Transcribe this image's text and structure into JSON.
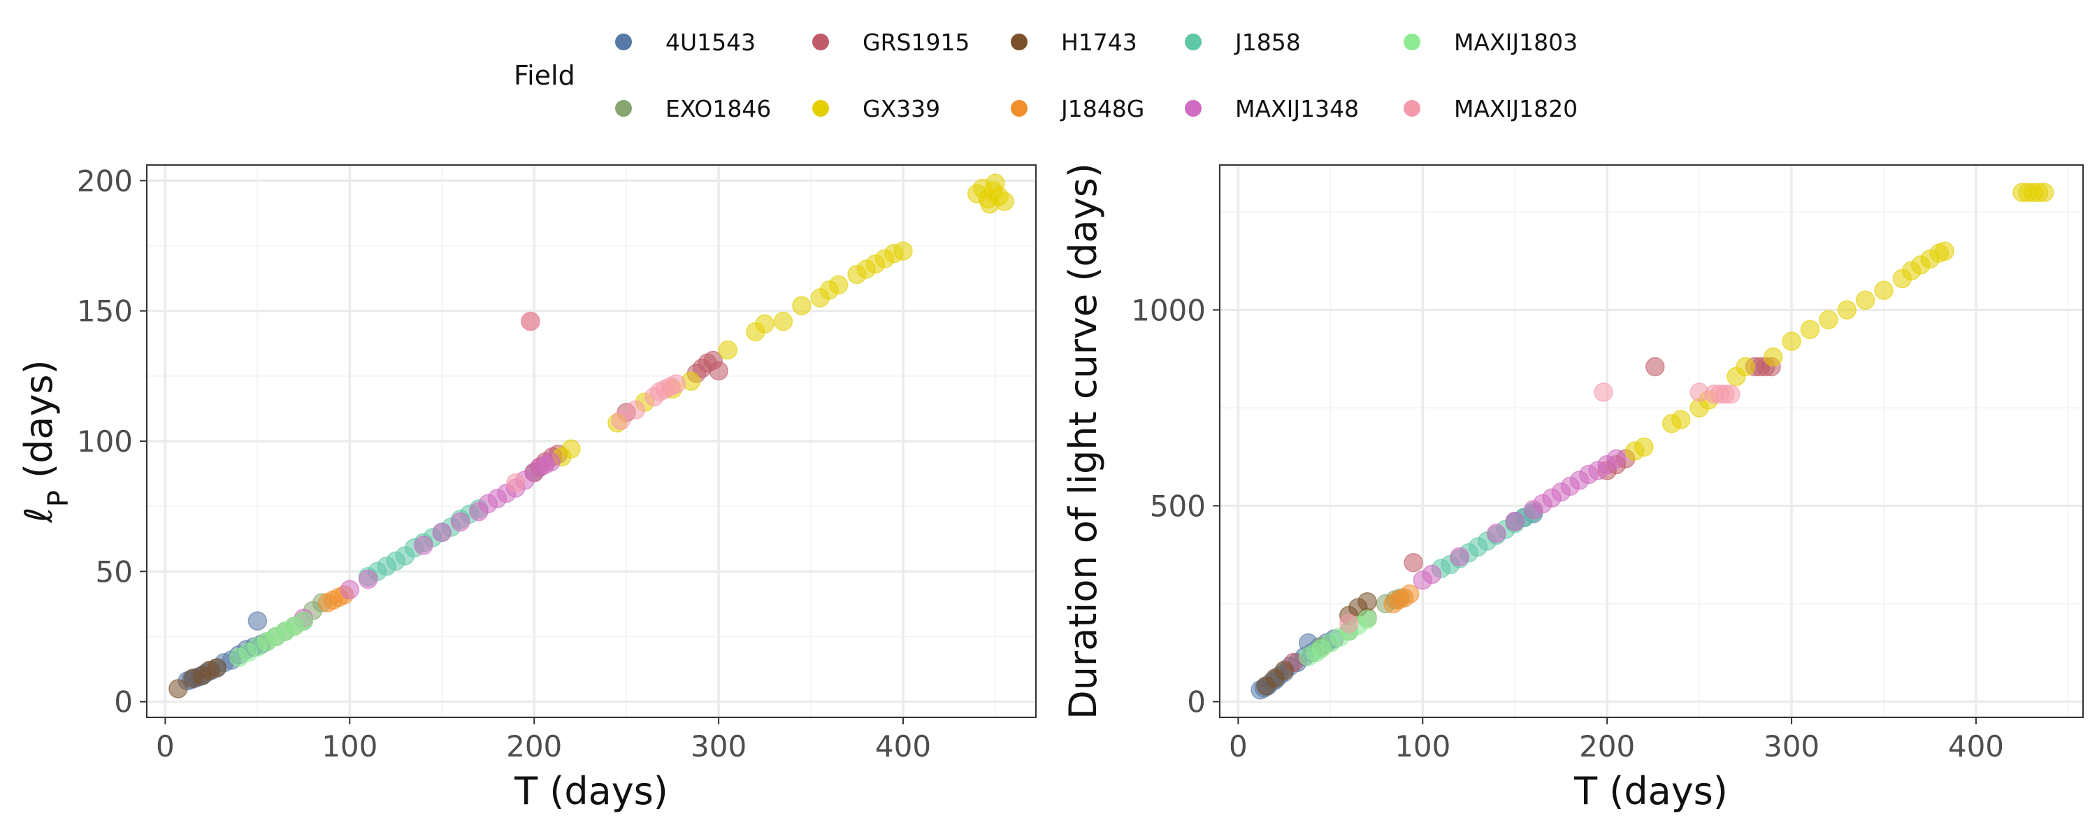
{
  "legend": {
    "title": "Field",
    "entries": [
      {
        "name": "4U1543",
        "color": "#5779A7"
      },
      {
        "name": "EXO1846",
        "color": "#87A66F"
      },
      {
        "name": "GRS1915",
        "color": "#BF5B68"
      },
      {
        "name": "GX339",
        "color": "#E3CF00"
      },
      {
        "name": "H1743",
        "color": "#7A512A"
      },
      {
        "name": "J1848G",
        "color": "#F08F2C"
      },
      {
        "name": "J1858",
        "color": "#5DC7A6"
      },
      {
        "name": "MAXIJ1348",
        "color": "#CF6BC0"
      },
      {
        "name": "MAXIJ1803",
        "color": "#8EEB93"
      },
      {
        "name": "MAXIJ1820",
        "color": "#F59AAB"
      }
    ]
  },
  "chart_data": [
    {
      "type": "scatter",
      "xlabel": "T (days)",
      "ylabel": "ℓP (days)",
      "ylabel_main": "ℓ",
      "ylabel_sub": "P",
      "ylabel_rest": " (days)",
      "xlim": [
        -10,
        472
      ],
      "ylim": [
        -6,
        206
      ],
      "xticks": [
        0,
        100,
        200,
        300,
        400
      ],
      "yticks": [
        0,
        50,
        100,
        150,
        200
      ],
      "series": [
        {
          "name": "4U1543",
          "points": [
            [
              12,
              8
            ],
            [
              14,
              8.5
            ],
            [
              16,
              9
            ],
            [
              18,
              9.5
            ],
            [
              20,
              10
            ],
            [
              22,
              11
            ],
            [
              25,
              12
            ],
            [
              28,
              13
            ],
            [
              32,
              15
            ],
            [
              36,
              16
            ],
            [
              40,
              18
            ],
            [
              44,
              20
            ],
            [
              48,
              21
            ],
            [
              50,
              31
            ],
            [
              52,
              22
            ]
          ]
        },
        {
          "name": "EXO1846",
          "points": [
            [
              55,
              23
            ],
            [
              60,
              25
            ],
            [
              65,
              27
            ],
            [
              70,
              29
            ],
            [
              75,
              31
            ],
            [
              80,
              35
            ],
            [
              85,
              38
            ]
          ]
        },
        {
          "name": "GRS1915",
          "points": [
            [
              203,
              90
            ],
            [
              206,
              92
            ],
            [
              210,
              94
            ],
            [
              213,
              95
            ],
            [
              288,
              126
            ],
            [
              291,
              128
            ],
            [
              294,
              130
            ],
            [
              297,
              131
            ],
            [
              300,
              127
            ],
            [
              250,
              111
            ],
            [
              198,
              146
            ]
          ]
        },
        {
          "name": "GX339",
          "points": [
            [
              215,
              94
            ],
            [
              220,
              97
            ],
            [
              245,
              107
            ],
            [
              260,
              115
            ],
            [
              275,
              120
            ],
            [
              285,
              123
            ],
            [
              305,
              135
            ],
            [
              320,
              142
            ],
            [
              325,
              145
            ],
            [
              335,
              146
            ],
            [
              345,
              152
            ],
            [
              355,
              155
            ],
            [
              360,
              158
            ],
            [
              365,
              160
            ],
            [
              375,
              164
            ],
            [
              380,
              166
            ],
            [
              385,
              168
            ],
            [
              390,
              170
            ],
            [
              395,
              172
            ],
            [
              400,
              173
            ],
            [
              440,
              195
            ],
            [
              443,
              197
            ],
            [
              446,
              193
            ],
            [
              449,
              196
            ],
            [
              452,
              194
            ],
            [
              455,
              192
            ],
            [
              447,
              191
            ],
            [
              450,
              199
            ]
          ]
        },
        {
          "name": "H1743",
          "points": [
            [
              7,
              5
            ],
            [
              15,
              9
            ],
            [
              20,
              10
            ],
            [
              24,
              12
            ],
            [
              28,
              13
            ],
            [
              200,
              88
            ]
          ]
        },
        {
          "name": "J1848G",
          "points": [
            [
              88,
              38
            ],
            [
              91,
              39
            ],
            [
              94,
              40
            ],
            [
              97,
              41
            ]
          ]
        },
        {
          "name": "J1858",
          "points": [
            [
              110,
              48
            ],
            [
              115,
              50
            ],
            [
              120,
              52
            ],
            [
              125,
              54
            ],
            [
              130,
              56
            ],
            [
              135,
              59
            ],
            [
              140,
              61
            ],
            [
              145,
              63
            ],
            [
              150,
              65
            ],
            [
              155,
              67
            ],
            [
              160,
              70
            ],
            [
              165,
              72
            ],
            [
              170,
              74
            ]
          ]
        },
        {
          "name": "MAXIJ1348",
          "points": [
            [
              75,
              32
            ],
            [
              100,
              43
            ],
            [
              110,
              47
            ],
            [
              140,
              60
            ],
            [
              150,
              65
            ],
            [
              160,
              69
            ],
            [
              170,
              73
            ],
            [
              175,
              76
            ],
            [
              180,
              78
            ],
            [
              185,
              80
            ],
            [
              190,
              82
            ],
            [
              195,
              85
            ],
            [
              200,
              88
            ],
            [
              203,
              90
            ],
            [
              206,
              91
            ],
            [
              209,
              92
            ]
          ]
        },
        {
          "name": "MAXIJ1803",
          "points": [
            [
              40,
              17
            ],
            [
              45,
              19
            ],
            [
              50,
              21
            ],
            [
              55,
              23
            ],
            [
              60,
              25
            ],
            [
              65,
              27
            ],
            [
              70,
              29
            ],
            [
              75,
              31
            ]
          ]
        },
        {
          "name": "MAXIJ1820",
          "points": [
            [
              190,
              84
            ],
            [
              198,
              146
            ],
            [
              255,
              112
            ],
            [
              265,
              117
            ],
            [
              268,
              119
            ],
            [
              271,
              120
            ],
            [
              274,
              121
            ],
            [
              277,
              122
            ],
            [
              247,
              108
            ]
          ]
        }
      ]
    },
    {
      "type": "scatter",
      "xlabel": "T (days)",
      "ylabel": "Duration of light curve (days)",
      "xlim": [
        -10,
        458
      ],
      "ylim": [
        -40,
        1370
      ],
      "xticks": [
        0,
        100,
        200,
        300,
        400
      ],
      "yticks": [
        0,
        500,
        1000
      ],
      "series": [
        {
          "name": "4U1543",
          "points": [
            [
              12,
              30
            ],
            [
              14,
              35
            ],
            [
              16,
              40
            ],
            [
              18,
              50
            ],
            [
              20,
              55
            ],
            [
              22,
              65
            ],
            [
              25,
              75
            ],
            [
              28,
              90
            ],
            [
              32,
              100
            ],
            [
              36,
              115
            ],
            [
              40,
              125
            ],
            [
              38,
              150
            ],
            [
              44,
              140
            ],
            [
              48,
              150
            ],
            [
              52,
              160
            ],
            [
              150,
              460
            ],
            [
              155,
              470
            ],
            [
              160,
              480
            ]
          ]
        },
        {
          "name": "EXO1846",
          "points": [
            [
              45,
              140
            ],
            [
              60,
              180
            ],
            [
              70,
              215
            ],
            [
              80,
              250
            ],
            [
              85,
              260
            ],
            [
              88,
              265
            ]
          ]
        },
        {
          "name": "GRS1915",
          "points": [
            [
              200,
              590
            ],
            [
              205,
              605
            ],
            [
              210,
              620
            ],
            [
              280,
              855
            ],
            [
              283,
              855
            ],
            [
              286,
              855
            ],
            [
              289,
              855
            ],
            [
              226,
              855
            ],
            [
              95,
              355
            ],
            [
              30,
              100
            ]
          ]
        },
        {
          "name": "GX339",
          "points": [
            [
              215,
              640
            ],
            [
              220,
              650
            ],
            [
              235,
              710
            ],
            [
              240,
              720
            ],
            [
              250,
              750
            ],
            [
              255,
              770
            ],
            [
              270,
              830
            ],
            [
              275,
              855
            ],
            [
              290,
              880
            ],
            [
              300,
              920
            ],
            [
              310,
              950
            ],
            [
              320,
              975
            ],
            [
              330,
              1000
            ],
            [
              340,
              1025
            ],
            [
              350,
              1050
            ],
            [
              360,
              1080
            ],
            [
              365,
              1100
            ],
            [
              370,
              1115
            ],
            [
              375,
              1130
            ],
            [
              380,
              1145
            ],
            [
              383,
              1150
            ],
            [
              425,
              1300
            ],
            [
              428,
              1300
            ],
            [
              431,
              1300
            ],
            [
              434,
              1300
            ],
            [
              437,
              1300
            ]
          ]
        },
        {
          "name": "H1743",
          "points": [
            [
              15,
              40
            ],
            [
              20,
              60
            ],
            [
              25,
              80
            ],
            [
              60,
              220
            ],
            [
              65,
              240
            ],
            [
              70,
              255
            ]
          ]
        },
        {
          "name": "J1848G",
          "points": [
            [
              84,
              250
            ],
            [
              87,
              260
            ],
            [
              90,
              265
            ],
            [
              93,
              275
            ]
          ]
        },
        {
          "name": "J1858",
          "points": [
            [
              110,
              340
            ],
            [
              115,
              350
            ],
            [
              120,
              365
            ],
            [
              125,
              380
            ],
            [
              130,
              395
            ],
            [
              135,
              410
            ],
            [
              140,
              425
            ],
            [
              145,
              440
            ],
            [
              150,
              455
            ],
            [
              155,
              470
            ],
            [
              160,
              485
            ]
          ]
        },
        {
          "name": "MAXIJ1348",
          "points": [
            [
              100,
              310
            ],
            [
              105,
              325
            ],
            [
              120,
              370
            ],
            [
              140,
              430
            ],
            [
              150,
              460
            ],
            [
              160,
              490
            ],
            [
              165,
              505
            ],
            [
              170,
              520
            ],
            [
              175,
              535
            ],
            [
              180,
              550
            ],
            [
              185,
              565
            ],
            [
              190,
              580
            ],
            [
              195,
              590
            ],
            [
              200,
              605
            ],
            [
              205,
              620
            ]
          ]
        },
        {
          "name": "MAXIJ1803",
          "points": [
            [
              38,
              115
            ],
            [
              42,
              125
            ],
            [
              45,
              135
            ],
            [
              50,
              150
            ],
            [
              55,
              165
            ],
            [
              60,
              180
            ],
            [
              65,
              195
            ],
            [
              70,
              210
            ]
          ]
        },
        {
          "name": "MAXIJ1820",
          "points": [
            [
              198,
              790
            ],
            [
              250,
              790
            ],
            [
              258,
              785
            ],
            [
              261,
              785
            ],
            [
              264,
              785
            ],
            [
              267,
              785
            ],
            [
              60,
              200
            ]
          ]
        }
      ]
    }
  ]
}
